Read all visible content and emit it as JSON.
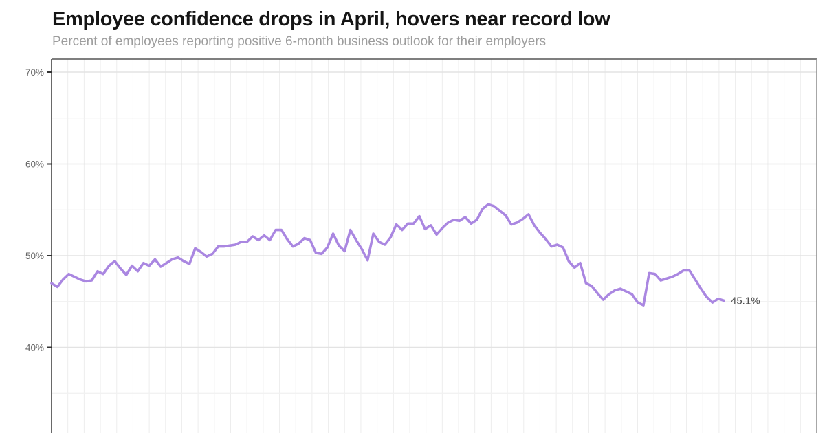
{
  "header": {
    "title": "Employee confidence drops in April, hovers near record low",
    "subtitle": "Percent of employees reporting positive 6-month business outlook for their employers"
  },
  "colors": {
    "line": "#aa87e1",
    "title_text": "#151515",
    "subtitle_text": "#9d9d9d",
    "axis_line": "#444444",
    "right_border": "#919191",
    "major_grid": "#e3e3e3",
    "minor_grid": "#f1f1f1",
    "vertical_grid": "#ededed",
    "tick_label": "#666666",
    "end_label_text": "#4d4d4d",
    "background": "#ffffff"
  },
  "chart_data": {
    "type": "line",
    "title": "Employee confidence drops in April, hovers near record low",
    "subtitle": "Percent of employees reporting positive 6-month business outlook for their employers",
    "xlabel": "",
    "ylabel": "",
    "x_axis_labels_visible": false,
    "grid": true,
    "legend": "none",
    "y_axis": {
      "tick_labels": [
        "70%",
        "60%",
        "50%",
        "40%"
      ],
      "tick_values": [
        70,
        60,
        50,
        40
      ],
      "minor_gridline_values": [
        65,
        55,
        45,
        35
      ],
      "unit": "%"
    },
    "end_label": "45.1%",
    "latest_value": 45.1,
    "series": [
      {
        "name": "employee-confidence-positive-outlook-pct",
        "values": [
          47.0,
          46.6,
          47.4,
          48.0,
          47.7,
          47.4,
          47.2,
          47.3,
          48.3,
          48.0,
          48.9,
          49.4,
          48.6,
          47.9,
          48.9,
          48.3,
          49.2,
          48.9,
          49.6,
          48.8,
          49.2,
          49.6,
          49.8,
          49.4,
          49.1,
          50.8,
          50.4,
          49.9,
          50.2,
          51.0,
          51.0,
          51.1,
          51.2,
          51.5,
          51.5,
          52.1,
          51.7,
          52.2,
          51.7,
          52.8,
          52.8,
          51.8,
          51.0,
          51.3,
          51.9,
          51.7,
          50.3,
          50.2,
          50.9,
          52.4,
          51.1,
          50.5,
          52.8,
          51.7,
          50.7,
          49.5,
          52.4,
          51.5,
          51.2,
          52.0,
          53.4,
          52.8,
          53.5,
          53.5,
          54.3,
          52.9,
          53.3,
          52.3,
          53.0,
          53.6,
          53.9,
          53.8,
          54.2,
          53.5,
          53.9,
          55.1,
          55.6,
          55.4,
          54.9,
          54.4,
          53.4,
          53.6,
          54.0,
          54.5,
          53.3,
          52.5,
          51.8,
          51.0,
          51.2,
          50.9,
          49.4,
          48.7,
          49.2,
          47.0,
          46.7,
          45.9,
          45.2,
          45.8,
          46.2,
          46.4,
          46.1,
          45.8,
          44.9,
          44.6,
          48.1,
          48.0,
          47.3,
          47.5,
          47.7,
          48.0,
          48.4,
          48.4,
          47.4,
          46.4,
          45.5,
          44.9,
          45.3,
          45.1
        ]
      }
    ]
  }
}
